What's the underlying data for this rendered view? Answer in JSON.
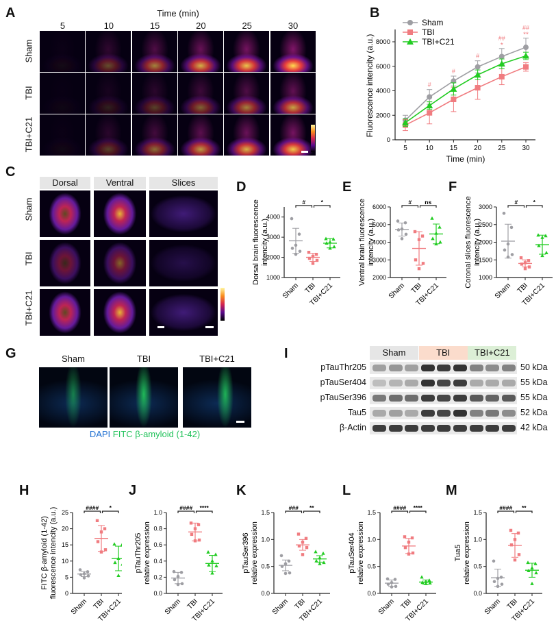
{
  "panels": {
    "A": "A",
    "B": "B",
    "C": "C",
    "D": "D",
    "E": "E",
    "F": "F",
    "G": "G",
    "H": "H",
    "I": "I",
    "J": "J",
    "K": "K",
    "L": "L",
    "M": "M"
  },
  "panelA": {
    "time_header": "Time (min)",
    "times": [
      "5",
      "10",
      "15",
      "20",
      "25",
      "30"
    ],
    "groups": [
      "Sham",
      "TBI",
      "TBI+C21"
    ],
    "intensity": [
      [
        0.05,
        0.35,
        0.6,
        0.8,
        0.9,
        1.0
      ],
      [
        0.03,
        0.15,
        0.3,
        0.45,
        0.6,
        0.75
      ],
      [
        0.04,
        0.3,
        0.5,
        0.7,
        0.82,
        0.92
      ]
    ]
  },
  "panelC": {
    "columns": [
      "Dorsal",
      "Ventral",
      "Slices"
    ],
    "groups": [
      "Sham",
      "TBI",
      "TBI+C21"
    ]
  },
  "panelG": {
    "columns": [
      "Sham",
      "TBI",
      "TBI+C21"
    ],
    "legend": {
      "dapi": "DAPI",
      "fitc": "FITC β-amyloid (1-42)"
    },
    "colors": {
      "dapi": "#1f6fd1",
      "fitc": "#21c25a"
    }
  },
  "panelI": {
    "groups": [
      {
        "label": "Sham",
        "color": "#e6e6e6"
      },
      {
        "label": "TBI",
        "color": "#fbdccc"
      },
      {
        "label": "TBI+C21",
        "color": "#dcefd6"
      }
    ],
    "rows": [
      {
        "label": "pTauThr205",
        "kda": "50 kDa",
        "levels": [
          0.35,
          0.4,
          0.35,
          0.9,
          0.85,
          0.9,
          0.5,
          0.45,
          0.5
        ]
      },
      {
        "label": "pTauSer404",
        "kda": "55 kDa",
        "levels": [
          0.2,
          0.25,
          0.3,
          0.9,
          0.8,
          0.85,
          0.3,
          0.3,
          0.3
        ]
      },
      {
        "label": "pTauSer396",
        "kda": "55 kDa",
        "levels": [
          0.55,
          0.6,
          0.6,
          0.85,
          0.8,
          0.85,
          0.7,
          0.65,
          0.7
        ]
      },
      {
        "label": "Tau5",
        "kda": "52 kDa",
        "levels": [
          0.3,
          0.35,
          0.3,
          0.85,
          0.8,
          0.9,
          0.5,
          0.55,
          0.45
        ]
      },
      {
        "label": "β-Actin",
        "kda": "42 kDa",
        "levels": [
          0.85,
          0.85,
          0.85,
          0.85,
          0.85,
          0.85,
          0.85,
          0.85,
          0.85
        ]
      }
    ]
  },
  "colors": {
    "Sham": "#9e9ea3",
    "TBI": "#f07c80",
    "TBI+C21": "#22cc22"
  },
  "chart_data": [
    {
      "id": "B",
      "type": "line",
      "xlabel": "Time (min)",
      "ylabel": "Fluorescence intencity (a.u.)",
      "x": [
        5,
        10,
        15,
        20,
        25,
        30
      ],
      "xticks": [
        "5",
        "10",
        "15",
        "20",
        "25",
        "30"
      ],
      "ylim": [
        0,
        9000
      ],
      "yticks": [
        0,
        2000,
        4000,
        6000,
        8000
      ],
      "legend": "top-left",
      "series": [
        {
          "name": "Sham",
          "marker": "circle",
          "values": [
            1600,
            3500,
            4800,
            5950,
            6800,
            7550
          ],
          "sd": [
            400,
            600,
            400,
            500,
            650,
            750
          ]
        },
        {
          "name": "TBI",
          "marker": "square",
          "values": [
            1200,
            2200,
            3300,
            4250,
            5150,
            5950
          ],
          "sd": [
            450,
            900,
            1000,
            950,
            650,
            350
          ]
        },
        {
          "name": "TBI+C21",
          "marker": "triangle",
          "values": [
            1400,
            2800,
            4150,
            5300,
            6200,
            6850
          ],
          "sd": [
            300,
            300,
            500,
            400,
            400,
            300
          ]
        }
      ],
      "annotations": [
        {
          "x": 10,
          "text": "#"
        },
        {
          "x": 15,
          "text": "#"
        },
        {
          "x": 20,
          "text": "#"
        },
        {
          "x": 25,
          "text": "##",
          "text2": "*"
        },
        {
          "x": 30,
          "text": "##",
          "text2": "**"
        }
      ]
    },
    {
      "id": "D",
      "type": "scatter",
      "ylabel": [
        "Dorsal brain fluorescence",
        "intencity (a.u.)"
      ],
      "categories": [
        "Sham",
        "TBI",
        "TBI+C21"
      ],
      "ylim": [
        1000,
        4500
      ],
      "yticks": [
        1000,
        2000,
        3000,
        4000
      ],
      "sig": [
        "#",
        "*"
      ],
      "groups": [
        {
          "mean": 2820,
          "sd": 620,
          "points": [
            3920,
            3150,
            2600,
            2450,
            2300,
            2150
          ]
        },
        {
          "mean": 2000,
          "sd": 200,
          "points": [
            2250,
            2150,
            2050,
            1950,
            1850,
            1700
          ]
        },
        {
          "mean": 2700,
          "sd": 230,
          "points": [
            2920,
            2900,
            2750,
            2700,
            2520,
            2450
          ]
        }
      ]
    },
    {
      "id": "E",
      "type": "scatter",
      "ylabel": [
        "Ventral brain fluorescence",
        "intencity (a.u.)"
      ],
      "categories": [
        "Sham",
        "TBI",
        "TBI+C21"
      ],
      "ylim": [
        2000,
        6000
      ],
      "yticks": [
        2000,
        3000,
        4000,
        5000,
        6000
      ],
      "sig": [
        "#",
        "ns"
      ],
      "groups": [
        {
          "mean": 4720,
          "sd": 370,
          "points": [
            5200,
            5100,
            4750,
            4700,
            4450,
            4200
          ]
        },
        {
          "mean": 3650,
          "sd": 950,
          "points": [
            4600,
            4350,
            4150,
            3000,
            2800,
            2500
          ]
        },
        {
          "mean": 4470,
          "sd": 560,
          "points": [
            5350,
            4850,
            4500,
            4200,
            4000,
            3900
          ]
        }
      ]
    },
    {
      "id": "F",
      "type": "scatter",
      "ylabel": [
        "Coronal slices fluorescence",
        "intencity (a.u.)"
      ],
      "categories": [
        "Sham",
        "TBI",
        "TBI+C21"
      ],
      "ylim": [
        1000,
        3000
      ],
      "yticks": [
        1000,
        1500,
        2000,
        2500,
        3000
      ],
      "sig": [
        "#",
        "*"
      ],
      "groups": [
        {
          "mean": 2030,
          "sd": 480,
          "points": [
            2820,
            2420,
            1950,
            1780,
            1650,
            1580
          ]
        },
        {
          "mean": 1400,
          "sd": 100,
          "points": [
            1560,
            1480,
            1420,
            1380,
            1300,
            1250
          ]
        },
        {
          "mean": 1930,
          "sd": 270,
          "points": [
            2200,
            2180,
            2130,
            1900,
            1700,
            1620
          ]
        }
      ]
    },
    {
      "id": "H",
      "type": "scatter",
      "ylabel": [
        "FITC β-amyloid (1-42)",
        "fluorescence intencity (a.u.)"
      ],
      "categories": [
        "Sham",
        "TBI",
        "TBI+C21"
      ],
      "ylim": [
        0,
        25
      ],
      "yticks": [
        0,
        5,
        10,
        15,
        20,
        25
      ],
      "sig": [
        "####",
        "*"
      ],
      "groups": [
        {
          "mean": 6,
          "sd": 0.8,
          "points": [
            7.3,
            6.7,
            6.1,
            5.8,
            5.4,
            4.8
          ]
        },
        {
          "mean": 17,
          "sd": 4,
          "points": [
            22.5,
            20,
            19,
            16,
            13.5,
            12.8
          ]
        },
        {
          "mean": 10.8,
          "sd": 3.8,
          "points": [
            15.2,
            14.9,
            10.8,
            9.5,
            9,
            5.5
          ]
        }
      ]
    },
    {
      "id": "J",
      "type": "scatter",
      "ylabel": [
        "pTauThr205",
        "relative expression"
      ],
      "categories": [
        "Sham",
        "TBI",
        "TBI+C21"
      ],
      "ylim": [
        0,
        1
      ],
      "yticks": [
        "0.0",
        "0.2",
        "0.4",
        "0.6",
        "0.8",
        "1.0"
      ],
      "sig": [
        "####",
        "****"
      ],
      "groups": [
        {
          "mean": 0.19,
          "sd": 0.07,
          "points": [
            0.27,
            0.26,
            0.21,
            0.17,
            0.12,
            0.11
          ]
        },
        {
          "mean": 0.76,
          "sd": 0.11,
          "points": [
            0.87,
            0.85,
            0.8,
            0.73,
            0.66,
            0.65
          ]
        },
        {
          "mean": 0.37,
          "sd": 0.1,
          "points": [
            0.51,
            0.48,
            0.4,
            0.35,
            0.34,
            0.25
          ]
        }
      ]
    },
    {
      "id": "K",
      "type": "scatter",
      "ylabel": [
        "pTauSer396",
        "relative expression"
      ],
      "categories": [
        "Sham",
        "TBI",
        "TBI+C21"
      ],
      "ylim": [
        0,
        1.5
      ],
      "yticks": [
        "0.0",
        "0.5",
        "1.0",
        "1.5"
      ],
      "sig": [
        "###",
        "**"
      ],
      "groups": [
        {
          "mean": 0.52,
          "sd": 0.1,
          "points": [
            0.7,
            0.6,
            0.55,
            0.5,
            0.38,
            0.37
          ]
        },
        {
          "mean": 0.9,
          "sd": 0.1,
          "points": [
            1.1,
            1.02,
            0.95,
            0.88,
            0.85,
            0.72
          ]
        },
        {
          "mean": 0.64,
          "sd": 0.06,
          "points": [
            0.77,
            0.74,
            0.66,
            0.6,
            0.57,
            0.55
          ]
        }
      ]
    },
    {
      "id": "L",
      "type": "scatter",
      "ylabel": [
        "pTauSer404",
        "relative expression"
      ],
      "categories": [
        "Sham",
        "TBI",
        "TBI+C21"
      ],
      "ylim": [
        0,
        1.5
      ],
      "yticks": [
        "0.0",
        "0.5",
        "1.0",
        "1.5"
      ],
      "sig": [
        "####",
        "****"
      ],
      "groups": [
        {
          "mean": 0.19,
          "sd": 0.06,
          "points": [
            0.27,
            0.26,
            0.2,
            0.17,
            0.13,
            0.12
          ]
        },
        {
          "mean": 0.88,
          "sd": 0.14,
          "points": [
            1.05,
            1.03,
            0.95,
            0.85,
            0.75,
            0.73
          ]
        },
        {
          "mean": 0.21,
          "sd": 0.04,
          "points": [
            0.3,
            0.24,
            0.22,
            0.2,
            0.19,
            0.18
          ]
        }
      ]
    },
    {
      "id": "M",
      "type": "scatter",
      "ylabel": [
        "Tua5",
        "relative expression"
      ],
      "categories": [
        "Sham",
        "TBI",
        "TBI+C21"
      ],
      "ylim": [
        0,
        1.5
      ],
      "yticks": [
        "0.0",
        "0.5",
        "1.0",
        "1.5"
      ],
      "sig": [
        "####",
        "**"
      ],
      "groups": [
        {
          "mean": 0.29,
          "sd": 0.16,
          "points": [
            0.6,
            0.3,
            0.28,
            0.22,
            0.17,
            0.13
          ]
        },
        {
          "mean": 0.89,
          "sd": 0.22,
          "points": [
            1.17,
            1.12,
            1,
            0.9,
            0.72,
            0.62
          ]
        },
        {
          "mean": 0.43,
          "sd": 0.13,
          "points": [
            0.57,
            0.55,
            0.47,
            0.42,
            0.38,
            0.18
          ]
        }
      ]
    }
  ]
}
